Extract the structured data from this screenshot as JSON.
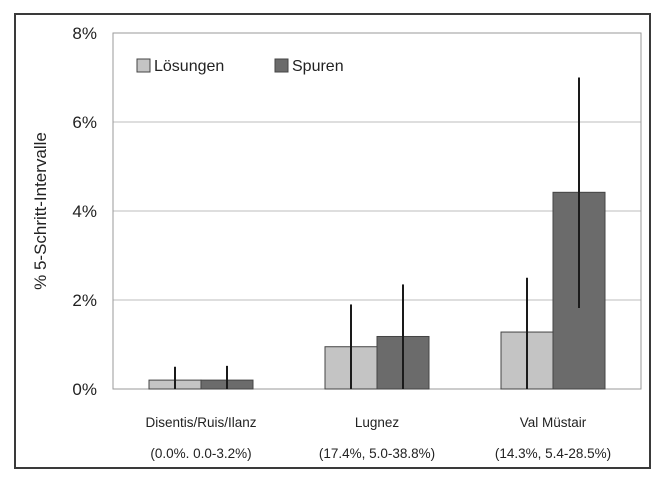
{
  "chart_data": {
    "type": "bar",
    "ylabel": "% 5-Schritt-Intervalle",
    "ylim": [
      0,
      8
    ],
    "yticks": [
      "0%",
      "2%",
      "4%",
      "6%",
      "8%"
    ],
    "grid": true,
    "legend_position": "top-left",
    "categories": [
      {
        "line1": "Disentis/Ruis/Ilanz",
        "line2": "(0.0%. 0.0-3.2%)"
      },
      {
        "line1": "Lugnez",
        "line2": "(17.4%, 5.0-38.8%)"
      },
      {
        "line1": "Val Müstair",
        "line2": "(14.3%, 5.4-28.5%)"
      }
    ],
    "series": [
      {
        "name": "Lösungen",
        "color": "#c4c4c4",
        "values": [
          0.2,
          0.95,
          1.28
        ],
        "err_low": [
          0.0,
          0.0,
          0.0
        ],
        "err_high": [
          0.5,
          1.9,
          2.5
        ]
      },
      {
        "name": "Spuren",
        "color": "#6b6b6b",
        "values": [
          0.2,
          1.18,
          4.42
        ],
        "err_low": [
          0.0,
          0.0,
          1.82
        ],
        "err_high": [
          0.52,
          2.35,
          7.0
        ]
      }
    ]
  }
}
